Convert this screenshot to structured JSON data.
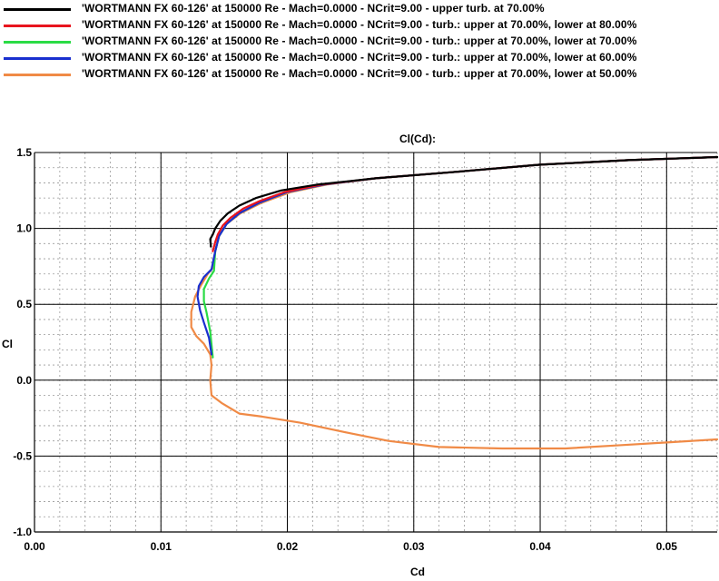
{
  "legend": [
    {
      "label": "'WORTMANN FX 60-126' at 150000 Re - Mach=0.0000 - NCrit=9.00 - upper turb. at 70.00%",
      "color": "#000000"
    },
    {
      "label": "'WORTMANN FX 60-126' at 150000 Re - Mach=0.0000 - NCrit=9.00 - turb.: upper at 70.00%, lower at 80.00%",
      "color": "#e8141e"
    },
    {
      "label": "'WORTMANN FX 60-126' at 150000 Re - Mach=0.0000 - NCrit=9.00 - turb.: upper at 70.00%, lower at 70.00%",
      "color": "#2adb45"
    },
    {
      "label": "'WORTMANN FX 60-126' at 150000 Re - Mach=0.0000 - NCrit=9.00 - turb.: upper at 70.00%, lower at 60.00%",
      "color": "#1a2fcf"
    },
    {
      "label": "'WORTMANN FX 60-126' at 150000 Re - Mach=0.0000 - NCrit=9.00 - turb.: upper at 70.00%, lower at 50.00%",
      "color": "#f08a46"
    }
  ],
  "chart_data": {
    "type": "line",
    "title": "Cl(Cd):",
    "xlabel": "Cd",
    "ylabel": "Cl",
    "xlim": [
      0.0,
      0.054
    ],
    "ylim": [
      -1.0,
      1.5
    ],
    "x_ticks": [
      "0.00",
      "0.01",
      "0.02",
      "0.03",
      "0.04",
      "0.05"
    ],
    "y_ticks": [
      "1.5",
      "1.0",
      "0.5",
      "0.0",
      "-0.5",
      "-1.0"
    ],
    "x_tick_values": [
      0.0,
      0.01,
      0.02,
      0.03,
      0.04,
      0.05
    ],
    "y_tick_values": [
      1.5,
      1.0,
      0.5,
      0.0,
      -0.5,
      -1.0
    ],
    "grid": true,
    "minor_grid": true,
    "legend_position": "top",
    "series": [
      {
        "name": "'WORTMANN FX 60-126' at 150000 Re - Mach=0.0000 - NCrit=9.00 - upper turb. at 70.00%",
        "color": "#000000",
        "x": [
          0.01395,
          0.0139,
          0.0141,
          0.0143,
          0.0147,
          0.0153,
          0.0162,
          0.0175,
          0.0195,
          0.0225,
          0.027,
          0.033,
          0.04,
          0.047,
          0.054
        ],
        "y": [
          0.88,
          0.93,
          0.96,
          1.0,
          1.05,
          1.1,
          1.15,
          1.2,
          1.25,
          1.29,
          1.33,
          1.37,
          1.42,
          1.45,
          1.47
        ]
      },
      {
        "name": "'WORTMANN FX 60-126' at 150000 Re - Mach=0.0000 - NCrit=9.00 - turb.: upper at 70.00%, lower at 80.00%",
        "color": "#e8141e",
        "x": [
          0.0141,
          0.0143,
          0.0145,
          0.0149,
          0.0155,
          0.0165,
          0.0178,
          0.0198,
          0.0228,
          0.027,
          0.033,
          0.04,
          0.047,
          0.054
        ],
        "y": [
          0.85,
          0.91,
          0.96,
          1.02,
          1.07,
          1.13,
          1.18,
          1.24,
          1.29,
          1.33,
          1.37,
          1.42,
          1.45,
          1.47
        ]
      },
      {
        "name": "'WORTMANN FX 60-126' at 150000 Re - Mach=0.0000 - NCrit=9.00 - turb.: upper at 70.00%, lower at 70.00%",
        "color": "#2adb45",
        "x": [
          0.0141,
          0.0139,
          0.0136,
          0.0134,
          0.0134,
          0.0138,
          0.0142,
          0.0143,
          0.0146,
          0.0152,
          0.0162,
          0.0178,
          0.02,
          0.023,
          0.027,
          0.033,
          0.04,
          0.047,
          0.054
        ],
        "y": [
          0.15,
          0.32,
          0.45,
          0.52,
          0.6,
          0.67,
          0.72,
          0.85,
          0.95,
          1.03,
          1.1,
          1.17,
          1.24,
          1.29,
          1.33,
          1.37,
          1.42,
          1.45,
          1.47
        ]
      },
      {
        "name": "'WORTMANN FX 60-126' at 150000 Re - Mach=0.0000 - NCrit=9.00 - turb.: upper at 70.00%, lower at 60.00%",
        "color": "#1a2fcf",
        "x": [
          0.014,
          0.0138,
          0.0134,
          0.0131,
          0.0129,
          0.013,
          0.0134,
          0.014,
          0.0143,
          0.0146,
          0.0152,
          0.0162,
          0.0178,
          0.02,
          0.023,
          0.027,
          0.033,
          0.04,
          0.047,
          0.054
        ],
        "y": [
          0.17,
          0.28,
          0.38,
          0.46,
          0.55,
          0.62,
          0.68,
          0.73,
          0.85,
          0.95,
          1.03,
          1.1,
          1.17,
          1.24,
          1.29,
          1.33,
          1.37,
          1.42,
          1.45,
          1.47
        ]
      },
      {
        "name": "'WORTMANN FX 60-126' at 150000 Re - Mach=0.0000 - NCrit=9.00 - turb.: upper at 70.00%, lower at 50.00%",
        "color": "#f08a46",
        "x": [
          0.054,
          0.05,
          0.046,
          0.042,
          0.037,
          0.032,
          0.028,
          0.025,
          0.021,
          0.018,
          0.0162,
          0.0148,
          0.014,
          0.0139,
          0.014,
          0.0139,
          0.0134,
          0.0128,
          0.0124,
          0.0124,
          0.0127,
          0.0132,
          0.0137,
          0.0141,
          0.0143,
          0.0146,
          0.0152,
          0.0163,
          0.018,
          0.0203,
          0.0232,
          0.027,
          0.033,
          0.04,
          0.047,
          0.054
        ],
        "y": [
          -0.39,
          -0.41,
          -0.43,
          -0.45,
          -0.45,
          -0.44,
          -0.4,
          -0.35,
          -0.28,
          -0.24,
          -0.22,
          -0.15,
          -0.1,
          0.0,
          0.1,
          0.17,
          0.24,
          0.29,
          0.35,
          0.45,
          0.55,
          0.63,
          0.7,
          0.74,
          0.85,
          0.95,
          1.03,
          1.1,
          1.17,
          1.24,
          1.29,
          1.33,
          1.37,
          1.42,
          1.45,
          1.47
        ]
      }
    ]
  }
}
